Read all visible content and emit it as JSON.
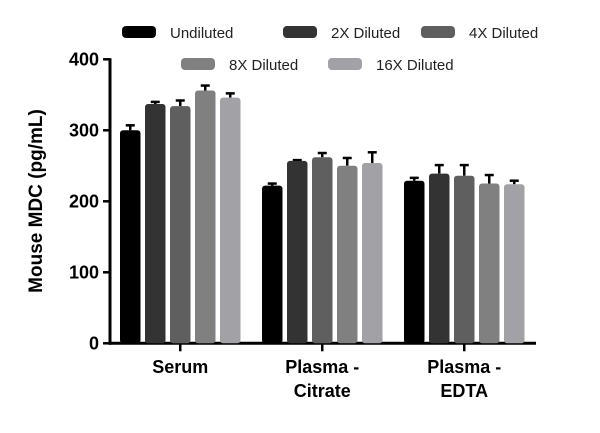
{
  "chart_data": {
    "type": "bar",
    "title": "",
    "xlabel": "",
    "ylabel": "Mouse MDC (pg/mL)",
    "ylim": [
      0,
      400
    ],
    "yticks": [
      0,
      100,
      200,
      300,
      400
    ],
    "categories": [
      [
        "Serum"
      ],
      [
        "Plasma -",
        "Citrate"
      ],
      [
        "Plasma -",
        "EDTA"
      ]
    ],
    "legend_placement": "top",
    "grid": false,
    "series": [
      {
        "name": "Undiluted",
        "color": "#000000",
        "values": [
          300,
          222,
          229
        ],
        "errors": [
          7,
          3,
          4
        ]
      },
      {
        "name": "2X Diluted",
        "color": "#333333",
        "values": [
          337,
          257,
          239
        ],
        "errors": [
          3,
          1,
          12
        ]
      },
      {
        "name": "4X Diluted",
        "color": "#5f5f5f",
        "values": [
          334,
          262,
          236
        ],
        "errors": [
          8,
          6,
          15
        ]
      },
      {
        "name": "8X Diluted",
        "color": "#808080",
        "values": [
          356,
          250,
          225
        ],
        "errors": [
          7,
          11,
          12
        ]
      },
      {
        "name": "16X Diluted",
        "color": "#a2a2a6",
        "values": [
          346,
          254,
          224
        ],
        "errors": [
          6,
          15,
          5
        ]
      }
    ]
  }
}
